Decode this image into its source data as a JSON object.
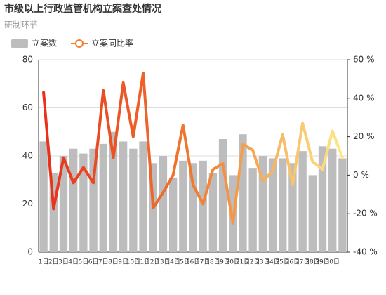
{
  "chart_data": {
    "type": "bar-line",
    "title": "市级以上行政监管机构立案查处情况",
    "subtitle": "研制环节",
    "categories": [
      "1日",
      "2日",
      "3日",
      "4日",
      "5日",
      "6日",
      "7日",
      "8日",
      "9日",
      "10日",
      "11日",
      "12日",
      "13日",
      "14日",
      "15日",
      "16日",
      "17日",
      "18日",
      "19日",
      "20日",
      "21日",
      "22日",
      "23日",
      "24日",
      "25日",
      "26日",
      "27日",
      "28日",
      "29日",
      "30日",
      null
    ],
    "series": [
      {
        "name": "立案数",
        "type": "bar",
        "color": "#bdbdbd",
        "values": [
          46,
          33,
          40,
          43,
          41,
          43,
          45,
          50,
          46,
          43,
          46,
          37,
          40,
          31,
          38,
          37,
          38,
          33,
          47,
          32,
          49,
          35,
          40,
          39,
          39,
          37,
          42,
          32,
          44,
          43,
          39
        ]
      },
      {
        "name": "立案同比率",
        "type": "line",
        "axis": "y2",
        "color": "#f08030",
        "gradient": [
          "#e8301a",
          "#f07a30",
          "#fde88a"
        ],
        "values": [
          43,
          -17.5,
          9,
          -4,
          4,
          -4,
          44,
          9,
          48,
          20,
          53,
          -17,
          -9,
          0,
          26,
          -5,
          -15,
          3,
          6,
          -25,
          16,
          13,
          -3,
          2,
          21,
          -5,
          27,
          7,
          3,
          23,
          9
        ]
      }
    ],
    "ylim": [
      0,
      80
    ],
    "yticks": [
      0,
      20,
      40,
      60,
      80
    ],
    "y2lim": [
      -40,
      60
    ],
    "y2ticks": [
      {
        "value": -40,
        "label": "-40 %"
      },
      {
        "value": -20,
        "label": "-20 %"
      },
      {
        "value": 0,
        "label": "0 %"
      },
      {
        "value": 20,
        "label": "20 %"
      },
      {
        "value": 40,
        "label": "40 %"
      },
      {
        "value": 60,
        "label": "60 %"
      }
    ],
    "grid": true
  }
}
